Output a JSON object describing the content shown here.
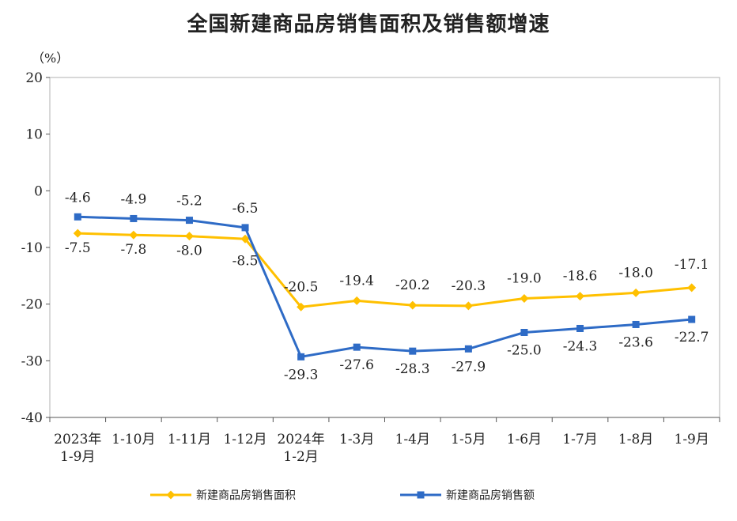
{
  "chart_data": {
    "type": "line",
    "title": "全国新建商品房销售面积及销售额增速",
    "ylabel": "（%）",
    "ylim": [
      -40,
      20
    ],
    "yticks": [
      20,
      10,
      0,
      -10,
      -20,
      -30,
      -40
    ],
    "categories": [
      [
        "2023年",
        "1-9月"
      ],
      [
        "1-10月"
      ],
      [
        "1-11月"
      ],
      [
        "1-12月"
      ],
      [
        "2024年",
        "1-2月"
      ],
      [
        "1-3月"
      ],
      [
        "1-4月"
      ],
      [
        "1-5月"
      ],
      [
        "1-6月"
      ],
      [
        "1-7月"
      ],
      [
        "1-8月"
      ],
      [
        "1-9月"
      ]
    ],
    "series": [
      {
        "name": "新建商品房销售面积",
        "color": "#FFC000",
        "marker": "diamond",
        "values": [
          -7.5,
          -7.8,
          -8.0,
          -8.5,
          -20.5,
          -19.4,
          -20.2,
          -20.3,
          -19.0,
          -18.6,
          -18.0,
          -17.1
        ],
        "labels": [
          "-7.5",
          "-7.8",
          "-8.0",
          "-8.5",
          "-20.5",
          "-19.4",
          "-20.2",
          "-20.3",
          "-19.0",
          "-18.6",
          "-18.0",
          "-17.1"
        ]
      },
      {
        "name": "新建商品房销售额",
        "color": "#2E6BC6",
        "marker": "square",
        "values": [
          -4.6,
          -4.9,
          -5.2,
          -6.5,
          -29.3,
          -27.6,
          -28.3,
          -27.9,
          -25.0,
          -24.3,
          -23.6,
          -22.7
        ],
        "labels": [
          "-4.6",
          "-4.9",
          "-5.2",
          "-6.5",
          "-29.3",
          "-27.6",
          "-28.3",
          "-27.9",
          "-25.0",
          "-24.3",
          "-23.6",
          "-22.7"
        ]
      }
    ],
    "grid": false,
    "legend": "bottom"
  }
}
